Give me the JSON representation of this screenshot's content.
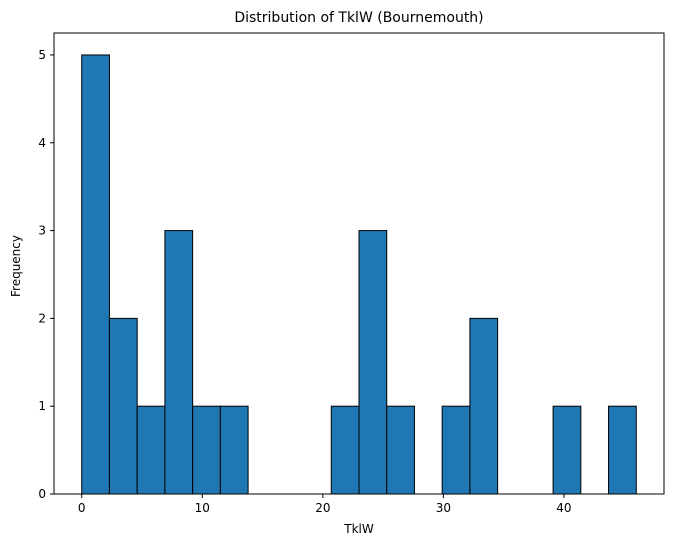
{
  "chart_data": {
    "type": "bar",
    "title": "Distribution of TklW (Bournemouth)",
    "xlabel": "TklW",
    "ylabel": "Frequency",
    "xlim": [
      -2.3,
      48.3
    ],
    "ylim": [
      0,
      5.25
    ],
    "xticks": [
      0,
      10,
      20,
      30,
      40
    ],
    "yticks": [
      0,
      1,
      2,
      3,
      4,
      5
    ],
    "bar_color": "#1f77b4",
    "edge_color": "#000000",
    "grid": false,
    "bins": [
      {
        "start": 0.0,
        "end": 2.3,
        "count": 5
      },
      {
        "start": 2.3,
        "end": 4.6,
        "count": 2
      },
      {
        "start": 4.6,
        "end": 6.9,
        "count": 1
      },
      {
        "start": 6.9,
        "end": 9.2,
        "count": 3
      },
      {
        "start": 9.2,
        "end": 11.5,
        "count": 1
      },
      {
        "start": 11.5,
        "end": 13.8,
        "count": 1
      },
      {
        "start": 13.8,
        "end": 16.1,
        "count": 0
      },
      {
        "start": 16.1,
        "end": 18.4,
        "count": 0
      },
      {
        "start": 18.4,
        "end": 20.7,
        "count": 0
      },
      {
        "start": 20.7,
        "end": 23.0,
        "count": 1
      },
      {
        "start": 23.0,
        "end": 25.3,
        "count": 3
      },
      {
        "start": 25.3,
        "end": 27.6,
        "count": 1
      },
      {
        "start": 27.6,
        "end": 29.9,
        "count": 0
      },
      {
        "start": 29.9,
        "end": 32.2,
        "count": 1
      },
      {
        "start": 32.2,
        "end": 34.5,
        "count": 2
      },
      {
        "start": 34.5,
        "end": 36.8,
        "count": 0
      },
      {
        "start": 36.8,
        "end": 39.1,
        "count": 0
      },
      {
        "start": 39.1,
        "end": 41.4,
        "count": 1
      },
      {
        "start": 41.4,
        "end": 43.7,
        "count": 0
      },
      {
        "start": 43.7,
        "end": 46.0,
        "count": 1
      }
    ]
  }
}
